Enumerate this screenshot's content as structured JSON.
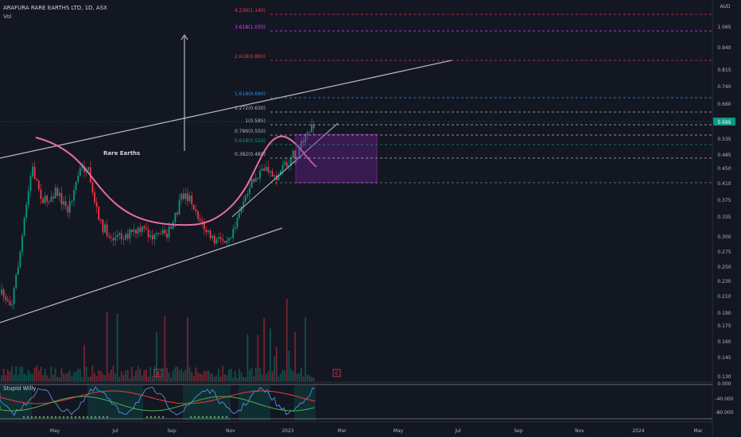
{
  "header": {
    "title": "ARAFURA RARE EARTHS LTD, 1D, ASX",
    "volume_label": "Vol"
  },
  "indicator": {
    "name": "Stupid Willy"
  },
  "price_axis": {
    "currency": "AUD",
    "current_price_label": "0.595"
  },
  "chart_data": {
    "type": "candlestick",
    "title": "ARAFURA RARE EARTHS LTD, 1D, ASX",
    "y_ticks": [
      "1.065",
      "0.940",
      "0.815",
      "0.740",
      "0.660",
      "0.595",
      "0.535",
      "0.485",
      "0.450",
      "0.410",
      "0.375",
      "0.335",
      "0.300",
      "0.275",
      "0.250",
      "0.230",
      "0.210",
      "0.190",
      "0.175",
      "0.160",
      "0.145",
      "0.130"
    ],
    "indicator_ticks": [
      "0.000",
      "-40.000",
      "-80.000"
    ],
    "x_ticks": [
      "May",
      "Jul",
      "Sep",
      "Nov",
      "2023",
      "Mar",
      "May",
      "Jul",
      "Sep",
      "Nov",
      "2024",
      "Mar"
    ],
    "fib_levels": [
      {
        "label": "4.236(1.140)",
        "price": 1.14,
        "color": "#f23645"
      },
      {
        "label": "3.618(1.035)",
        "price": 1.035,
        "color": "#e040fb"
      },
      {
        "label": "2.618(0.860)",
        "price": 0.86,
        "color": "#f23645"
      },
      {
        "label": "1.618(0.690)",
        "price": 0.69,
        "color": "#2196f3"
      },
      {
        "label": "1.272(0.630)",
        "price": 0.63,
        "color": "#b2b5be"
      },
      {
        "label": "1(0.585)",
        "price": 0.585,
        "color": "#b2b5be"
      },
      {
        "label": "0.786(0.550)",
        "price": 0.55,
        "color": "#b2b5be"
      },
      {
        "label": "0.618(0.520)",
        "price": 0.52,
        "color": "#089981"
      },
      {
        "label": "0.382(0.480)",
        "price": 0.48,
        "color": "#b2b5be"
      }
    ],
    "annotations": [
      "Rare Earths"
    ],
    "event_markers": [
      "E",
      "E"
    ],
    "colors": {
      "up": "#089981",
      "down": "#f23645",
      "cup": "#e56dae",
      "channel": "#b2b5be",
      "box": "#7b1fa2"
    }
  }
}
